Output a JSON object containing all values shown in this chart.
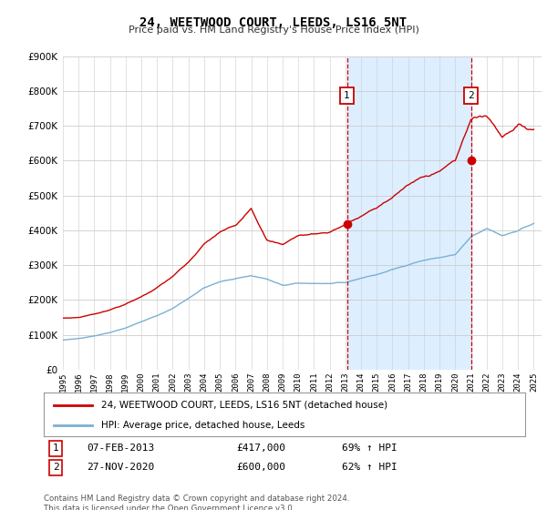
{
  "title": "24, WEETWOOD COURT, LEEDS, LS16 5NT",
  "subtitle": "Price paid vs. HM Land Registry's House Price Index (HPI)",
  "footer": "Contains HM Land Registry data © Crown copyright and database right 2024.\nThis data is licensed under the Open Government Licence v3.0.",
  "legend_line1": "24, WEETWOOD COURT, LEEDS, LS16 5NT (detached house)",
  "legend_line2": "HPI: Average price, detached house, Leeds",
  "transaction1_date": "07-FEB-2013",
  "transaction1_price": "£417,000",
  "transaction1_hpi": "69% ↑ HPI",
  "transaction2_date": "27-NOV-2020",
  "transaction2_price": "£600,000",
  "transaction2_hpi": "62% ↑ HPI",
  "ylim": [
    0,
    900000
  ],
  "xlim_start": 1995.0,
  "xlim_end": 2025.5,
  "background_color": "#ffffff",
  "plot_background": "#ffffff",
  "red_color": "#cc0000",
  "blue_color": "#7ab0d4",
  "shade_color": "#ddeeff",
  "grid_color": "#cccccc",
  "vline1_x": 2013.1,
  "vline2_x": 2021.0,
  "marker1_x": 2013.1,
  "marker1_y": 417000,
  "marker2_x": 2021.0,
  "marker2_y": 600000,
  "xtick_years": [
    1995,
    1996,
    1997,
    1998,
    1999,
    2000,
    2001,
    2002,
    2003,
    2004,
    2005,
    2006,
    2007,
    2008,
    2009,
    2010,
    2011,
    2012,
    2013,
    2014,
    2015,
    2016,
    2017,
    2018,
    2019,
    2020,
    2021,
    2022,
    2023,
    2024,
    2025
  ]
}
